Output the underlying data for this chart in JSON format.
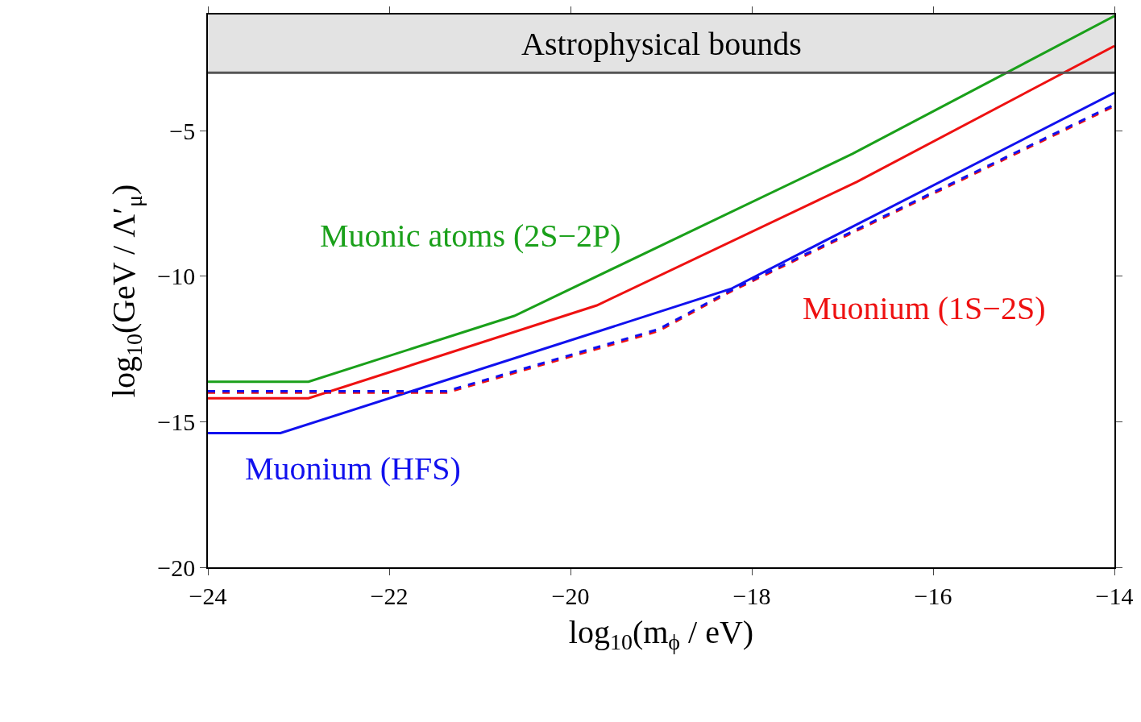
{
  "chart_data": {
    "type": "line",
    "xlabel": "log$_{10}$(m$_{ϕ}$ / eV)",
    "ylabel": "log$_{10}$(GeV / Λ′$_{μ}$)",
    "xlim": [
      -24,
      -14
    ],
    "xticks": [
      {
        "value": -24,
        "label": "−24"
      },
      {
        "value": -22,
        "label": "−22"
      },
      {
        "value": -20,
        "label": "−20"
      },
      {
        "value": -18,
        "label": "−18"
      },
      {
        "value": -16,
        "label": "−16"
      },
      {
        "value": -14,
        "label": "−14"
      }
    ],
    "ylim": [
      -20,
      -1
    ],
    "yticks": [
      {
        "value": -20,
        "label": "−20"
      },
      {
        "value": -15,
        "label": "−15"
      },
      {
        "value": -10,
        "label": "−10"
      },
      {
        "value": -5,
        "label": "−5"
      }
    ],
    "grid": false,
    "legend": false,
    "series": [
      {
        "name": "Muonic atoms (2S−2P)",
        "color": "#1aa01a",
        "x": [
          -24,
          -22.89,
          -20.62,
          -16.89,
          -14
        ],
        "values": [
          -13.62,
          -13.62,
          -11.36,
          -5.79,
          -1.05
        ]
      },
      {
        "name": "Muonium (1S−2S)",
        "color": "#ee1111",
        "x": [
          -24,
          -22.89,
          -19.71,
          -16.84,
          -14
        ],
        "values": [
          -14.19,
          -14.19,
          -11.0,
          -6.75,
          -2.08
        ]
      },
      {
        "name": "Muonium (HFS)",
        "color": "#1111ee",
        "x": [
          -24,
          -23.2,
          -18.23,
          -14
        ],
        "values": [
          -15.39,
          -15.39,
          -10.43,
          -3.69
        ]
      },
      {
        "color": "#ee1111",
        "line_style": "dashed",
        "x": [
          -24,
          -21.37,
          -19.03,
          -18.25,
          -14
        ],
        "values": [
          -14.0,
          -14.0,
          -11.88,
          -10.55,
          -4.15
        ]
      },
      {
        "color": "#1111ee",
        "line_style": "dashed",
        "x": [
          -24,
          -21.37,
          -19.03,
          -18.25,
          -14
        ],
        "values": [
          -13.95,
          -13.95,
          -11.82,
          -10.51,
          -4.1
        ]
      }
    ],
    "bands": [
      {
        "axis": "y",
        "from": -3,
        "to": -1,
        "label": "Astrophysical bounds",
        "color": "#e3e3e3"
      }
    ],
    "ref_lines": [
      {
        "axis": "y",
        "value": -3,
        "color": "#555555"
      }
    ]
  }
}
